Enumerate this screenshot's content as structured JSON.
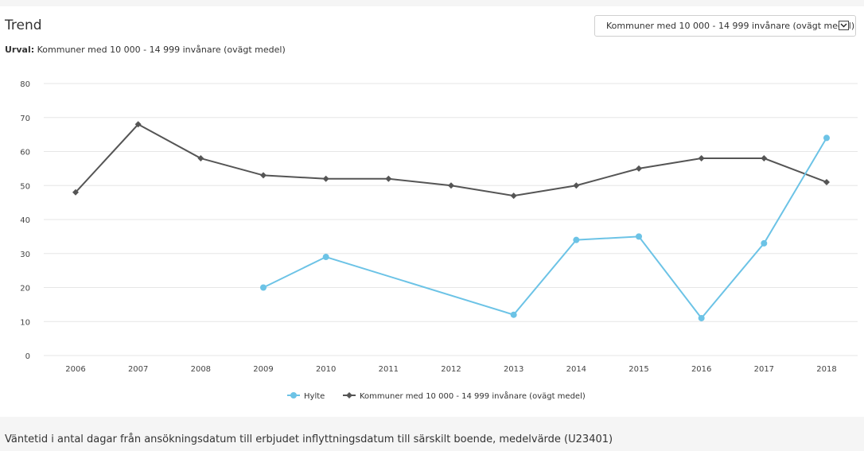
{
  "panel": {
    "title": "Trend",
    "subtitle_label": "Urval:",
    "subtitle_value": "Kommuner med 10 000 - 14 999 invånare (ovägt medel)",
    "select_value": "Kommuner med 10 000 - 14 999 invånare (ovägt medel)"
  },
  "footer": {
    "description": "Väntetid i antal dagar från ansökningsdatum till erbjudet inflyttningsdatum till särskilt boende, medelvärde (U23401)"
  },
  "colors": {
    "hylte": "#6cc3e6",
    "kommuner": "#555555",
    "grid": "#e6e6e6"
  },
  "chart_data": {
    "type": "line",
    "categories": [
      "2006",
      "2007",
      "2008",
      "2009",
      "2010",
      "2011",
      "2012",
      "2013",
      "2014",
      "2015",
      "2016",
      "2017",
      "2018"
    ],
    "ylim": [
      0,
      80
    ],
    "yticks": [
      0,
      10,
      20,
      30,
      40,
      50,
      60,
      70,
      80
    ],
    "grid": true,
    "legend": "bottom-center",
    "series": [
      {
        "name": "Hylte",
        "marker": "circle",
        "color": "#6cc3e6",
        "values": [
          null,
          null,
          null,
          20,
          29,
          null,
          null,
          12,
          34,
          35,
          11,
          33,
          64
        ]
      },
      {
        "name": "Kommuner med 10 000 - 14 999 invånare (ovägt medel)",
        "marker": "diamond",
        "color": "#555555",
        "values": [
          48,
          68,
          58,
          53,
          52,
          52,
          50,
          47,
          50,
          55,
          58,
          58,
          51
        ]
      }
    ]
  }
}
